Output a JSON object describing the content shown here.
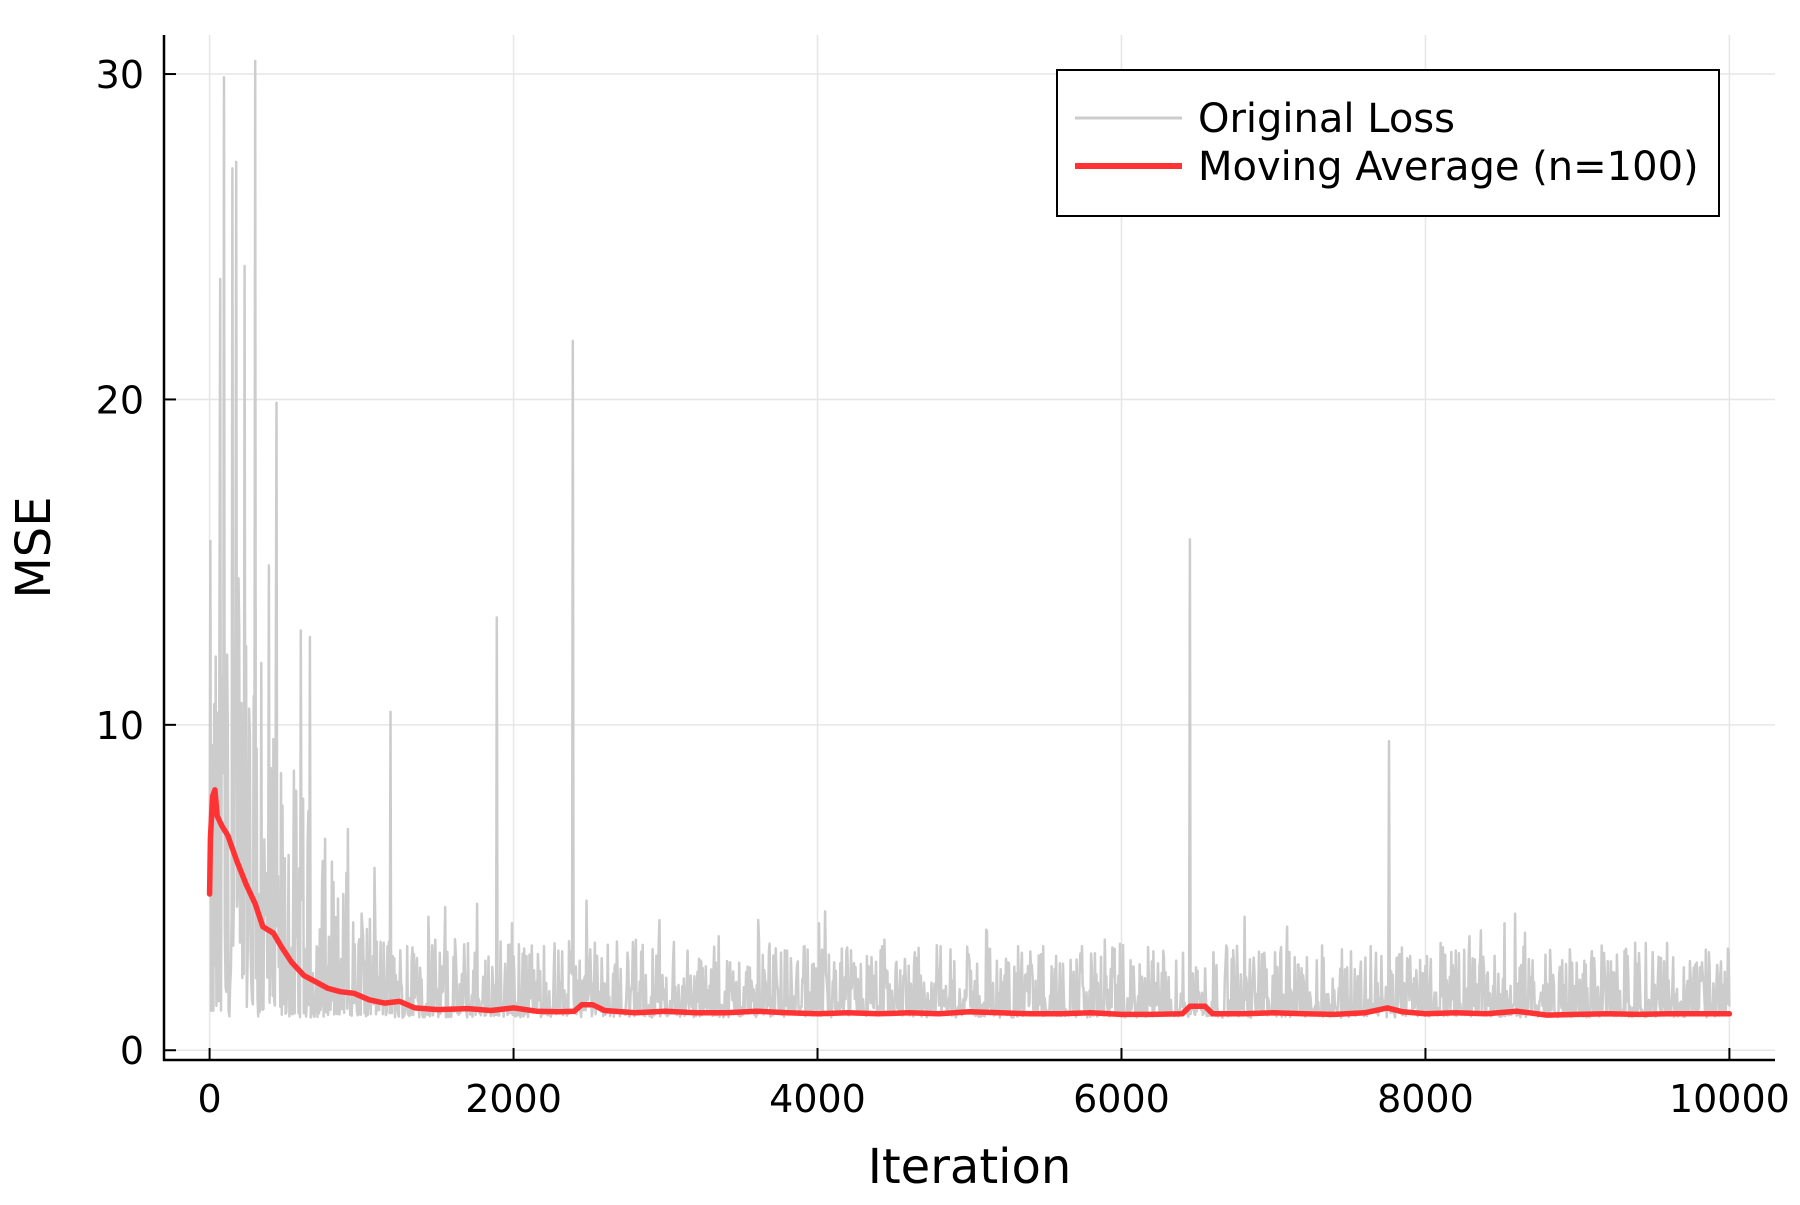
{
  "chart_data": {
    "type": "line",
    "title": "",
    "xlabel": "Iteration",
    "ylabel": "MSE",
    "xlim": [
      -300,
      10300
    ],
    "ylim": [
      -0.3,
      31.2
    ],
    "x_ticks": [
      0,
      2000,
      4000,
      6000,
      8000,
      10000
    ],
    "x_tick_labels": [
      "0",
      "2000",
      "4000",
      "6000",
      "8000",
      "10000"
    ],
    "y_ticks": [
      0,
      10,
      20,
      30
    ],
    "y_tick_labels": [
      "0",
      "10",
      "20",
      "30"
    ],
    "grid": true,
    "legend_position": "top-right",
    "series": [
      {
        "name": "Original Loss",
        "color": "#cccccc",
        "style": "noisy raw loss per iteration",
        "baseline": [
          [
            0,
            5.5
          ],
          [
            300,
            3.8
          ],
          [
            700,
            2.2
          ],
          [
            1200,
            1.6
          ],
          [
            2000,
            1.5
          ],
          [
            4000,
            1.4
          ],
          [
            6000,
            1.35
          ],
          [
            8000,
            1.35
          ],
          [
            10000,
            1.3
          ]
        ],
        "spikes": [
          [
            40,
            12.1
          ],
          [
            70,
            23.7
          ],
          [
            80,
            11.5
          ],
          [
            95,
            29.9
          ],
          [
            120,
            9.8
          ],
          [
            150,
            27.1
          ],
          [
            175,
            27.3
          ],
          [
            190,
            14.5
          ],
          [
            230,
            24.1
          ],
          [
            260,
            10.5
          ],
          [
            300,
            30.4
          ],
          [
            340,
            11.9
          ],
          [
            390,
            14.9
          ],
          [
            440,
            19.9
          ],
          [
            520,
            6.0
          ],
          [
            600,
            12.9
          ],
          [
            660,
            12.7
          ],
          [
            760,
            6.5
          ],
          [
            880,
            4.8
          ],
          [
            910,
            6.8
          ],
          [
            1000,
            4.2
          ],
          [
            1090,
            3.8
          ],
          [
            1190,
            10.4
          ],
          [
            1300,
            3.2
          ],
          [
            1440,
            4.1
          ],
          [
            1550,
            4.4
          ],
          [
            1760,
            4.5
          ],
          [
            1890,
            13.3
          ],
          [
            1990,
            3.9
          ],
          [
            2200,
            3.2
          ],
          [
            2390,
            21.8
          ],
          [
            2480,
            4.6
          ],
          [
            2750,
            3.0
          ],
          [
            2960,
            4.0
          ],
          [
            3350,
            3.5
          ],
          [
            3610,
            4.0
          ],
          [
            3760,
            3.0
          ],
          [
            4010,
            3.9
          ],
          [
            4230,
            2.6
          ],
          [
            4440,
            3.4
          ],
          [
            4600,
            2.6
          ],
          [
            4810,
            3.2
          ],
          [
            4990,
            2.7
          ],
          [
            5110,
            3.7
          ],
          [
            5340,
            2.5
          ],
          [
            5560,
            2.5
          ],
          [
            5740,
            3.2
          ],
          [
            5890,
            3.4
          ],
          [
            6180,
            2.2
          ],
          [
            6450,
            15.7
          ],
          [
            6810,
            4.1
          ],
          [
            7090,
            3.8
          ],
          [
            7450,
            3.1
          ],
          [
            7640,
            3.2
          ],
          [
            7760,
            9.5
          ],
          [
            7900,
            2.9
          ],
          [
            8100,
            3.3
          ],
          [
            8290,
            3.5
          ],
          [
            8520,
            3.9
          ],
          [
            8590,
            4.2
          ],
          [
            8680,
            2.8
          ],
          [
            8950,
            3.1
          ],
          [
            9170,
            2.5
          ],
          [
            9450,
            3.3
          ],
          [
            9590,
            3.3
          ],
          [
            9820,
            2.7
          ],
          [
            9940,
            2.3
          ]
        ]
      },
      {
        "name": "Moving Average (n=100)",
        "color": "#ff3333",
        "points": [
          [
            0,
            4.8
          ],
          [
            5,
            6.5
          ],
          [
            20,
            7.8
          ],
          [
            35,
            8.0
          ],
          [
            50,
            7.2
          ],
          [
            80,
            6.9
          ],
          [
            120,
            6.6
          ],
          [
            180,
            5.8
          ],
          [
            240,
            5.1
          ],
          [
            300,
            4.5
          ],
          [
            350,
            3.8
          ],
          [
            420,
            3.6
          ],
          [
            470,
            3.2
          ],
          [
            540,
            2.7
          ],
          [
            620,
            2.3
          ],
          [
            700,
            2.1
          ],
          [
            780,
            1.9
          ],
          [
            860,
            1.8
          ],
          [
            950,
            1.75
          ],
          [
            1050,
            1.55
          ],
          [
            1150,
            1.45
          ],
          [
            1250,
            1.5
          ],
          [
            1350,
            1.3
          ],
          [
            1500,
            1.25
          ],
          [
            1700,
            1.28
          ],
          [
            1850,
            1.22
          ],
          [
            2000,
            1.3
          ],
          [
            2150,
            1.2
          ],
          [
            2300,
            1.18
          ],
          [
            2400,
            1.2
          ],
          [
            2450,
            1.4
          ],
          [
            2520,
            1.4
          ],
          [
            2600,
            1.22
          ],
          [
            2800,
            1.15
          ],
          [
            3000,
            1.2
          ],
          [
            3200,
            1.15
          ],
          [
            3400,
            1.15
          ],
          [
            3600,
            1.2
          ],
          [
            3800,
            1.15
          ],
          [
            4000,
            1.12
          ],
          [
            4200,
            1.15
          ],
          [
            4400,
            1.12
          ],
          [
            4600,
            1.15
          ],
          [
            4800,
            1.12
          ],
          [
            5000,
            1.18
          ],
          [
            5200,
            1.15
          ],
          [
            5400,
            1.12
          ],
          [
            5600,
            1.12
          ],
          [
            5800,
            1.15
          ],
          [
            6000,
            1.1
          ],
          [
            6200,
            1.1
          ],
          [
            6400,
            1.12
          ],
          [
            6450,
            1.35
          ],
          [
            6550,
            1.35
          ],
          [
            6600,
            1.12
          ],
          [
            6800,
            1.12
          ],
          [
            7000,
            1.15
          ],
          [
            7200,
            1.12
          ],
          [
            7400,
            1.1
          ],
          [
            7600,
            1.15
          ],
          [
            7750,
            1.3
          ],
          [
            7850,
            1.18
          ],
          [
            8000,
            1.12
          ],
          [
            8200,
            1.15
          ],
          [
            8400,
            1.12
          ],
          [
            8600,
            1.2
          ],
          [
            8800,
            1.08
          ],
          [
            9000,
            1.1
          ],
          [
            9200,
            1.12
          ],
          [
            9400,
            1.1
          ],
          [
            9600,
            1.12
          ],
          [
            9800,
            1.12
          ],
          [
            10000,
            1.12
          ]
        ]
      }
    ]
  }
}
